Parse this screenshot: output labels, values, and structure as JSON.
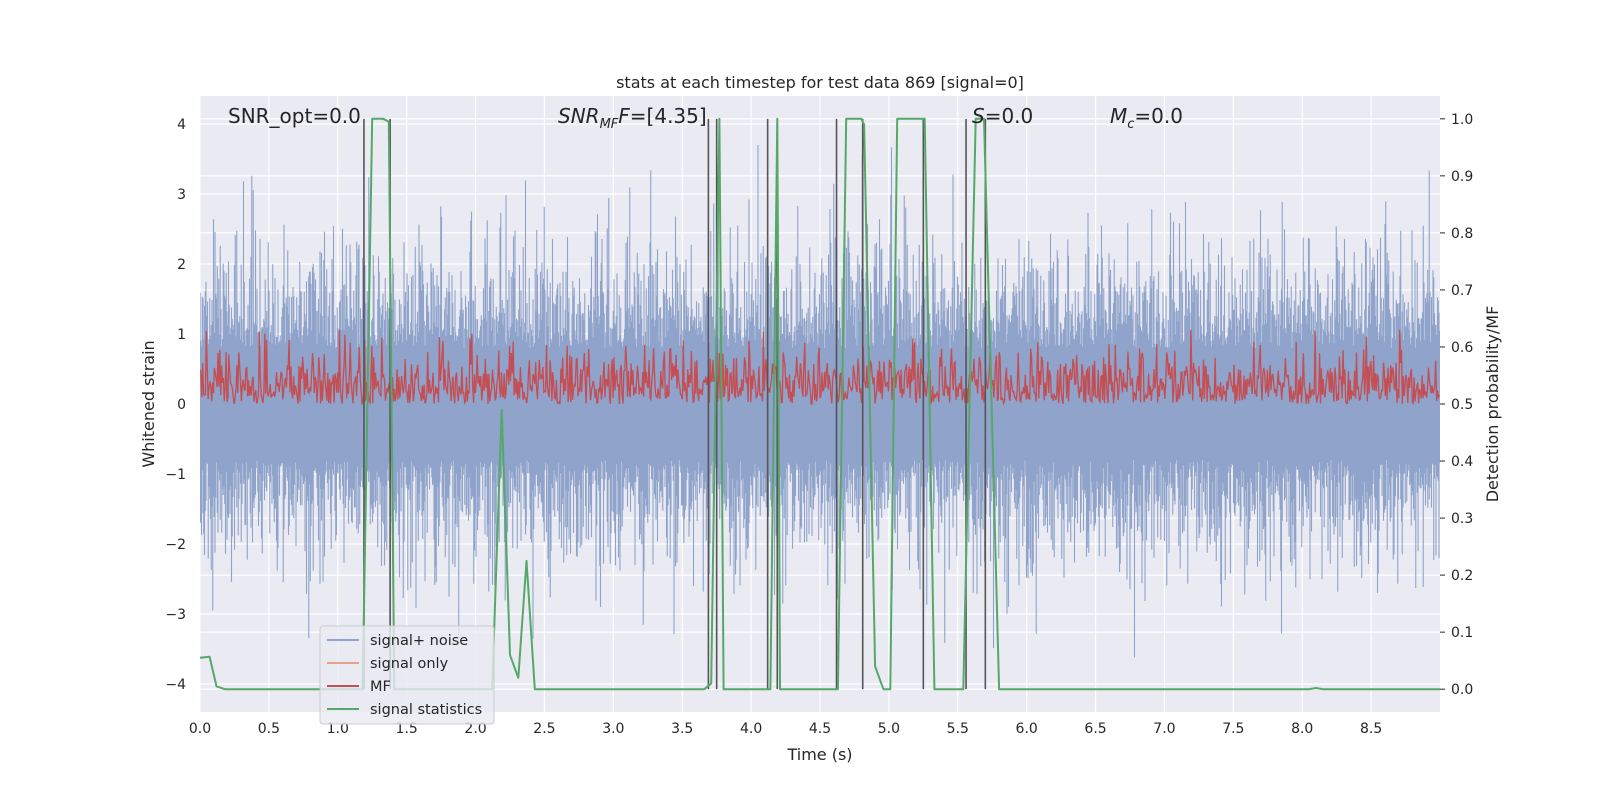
{
  "chart_data": {
    "type": "line",
    "title": "stats at each timestep for test data 869 [signal=0]",
    "xlabel": "Time (s)",
    "ylabel_left": "Whitened strain",
    "ylabel_right": "Detection probability/MF",
    "xlim": [
      0,
      9
    ],
    "ylim_left": [
      -4.4,
      4.4
    ],
    "ylim_right": [
      -0.04,
      1.04
    ],
    "x_ticks": [
      "0.0",
      "0.5",
      "1.0",
      "1.5",
      "2.0",
      "2.5",
      "3.0",
      "3.5",
      "4.0",
      "4.5",
      "5.0",
      "5.5",
      "6.0",
      "6.5",
      "7.0",
      "7.5",
      "8.0",
      "8.5"
    ],
    "y_left_ticks": [
      "−4",
      "−3",
      "−2",
      "−1",
      "0",
      "1",
      "2",
      "3",
      "4"
    ],
    "y_right_ticks": [
      "0.0",
      "0.1",
      "0.2",
      "0.3",
      "0.4",
      "0.5",
      "0.6",
      "0.7",
      "0.8",
      "0.9",
      "1.0"
    ],
    "grid": true,
    "legend_position": "lower-left",
    "annotations": {
      "snr_opt": "SNR_opt=0.0",
      "snr_mf_main": "SNR",
      "snr_mf_sub": "MF",
      "snr_mf_tail": "=[4.35]",
      "s_main": "S",
      "s_tail": "=0.0",
      "mc_main": "M",
      "mc_sub": "c",
      "mc_tail": "=0.0"
    },
    "series": [
      {
        "name": "signal+ noise",
        "color": "#8fa3cb",
        "axis": "left",
        "envelope_typical": 1.8,
        "envelope_peak": 3.7
      },
      {
        "name": "signal only",
        "color": "#e8a08a",
        "axis": "left",
        "values": []
      },
      {
        "name": "MF",
        "color": "#c44e52",
        "axis": "right",
        "range": [
          0.5,
          0.63
        ]
      },
      {
        "name": "signal statistics",
        "color": "#55a868",
        "axis": "right",
        "points": [
          [
            0.0,
            0.055
          ],
          [
            0.07,
            0.057
          ],
          [
            0.12,
            0.005
          ],
          [
            0.18,
            0.0
          ],
          [
            1.18,
            0.0
          ],
          [
            1.25,
            1.0
          ],
          [
            1.33,
            1.0
          ],
          [
            1.37,
            0.995
          ],
          [
            1.41,
            0.0
          ],
          [
            2.12,
            0.0
          ],
          [
            2.19,
            0.49
          ],
          [
            2.25,
            0.06
          ],
          [
            2.31,
            0.02
          ],
          [
            2.37,
            0.225
          ],
          [
            2.43,
            0.0
          ],
          [
            3.66,
            0.0
          ],
          [
            3.71,
            0.01
          ],
          [
            3.77,
            1.0
          ],
          [
            3.8,
            0.0
          ],
          [
            4.1,
            0.0
          ],
          [
            4.14,
            0.0
          ],
          [
            4.19,
            1.0
          ],
          [
            4.21,
            0.0
          ],
          [
            4.63,
            0.0
          ],
          [
            4.69,
            1.0
          ],
          [
            4.8,
            1.0
          ],
          [
            4.82,
            0.99
          ],
          [
            4.9,
            0.04
          ],
          [
            4.96,
            0.0
          ],
          [
            5.01,
            0.0
          ],
          [
            5.06,
            1.0
          ],
          [
            5.26,
            1.0
          ],
          [
            5.33,
            0.0
          ],
          [
            5.54,
            0.0
          ],
          [
            5.63,
            1.0
          ],
          [
            5.69,
            1.0
          ],
          [
            5.8,
            0.0
          ],
          [
            8.05,
            0.0
          ],
          [
            8.1,
            0.002
          ],
          [
            8.15,
            0.0
          ],
          [
            9.0,
            0.0
          ]
        ]
      }
    ],
    "vertical_markers": [
      1.19,
      1.38,
      3.69,
      3.75,
      4.12,
      4.19,
      4.62,
      4.81,
      5.25,
      5.56,
      5.7
    ]
  }
}
